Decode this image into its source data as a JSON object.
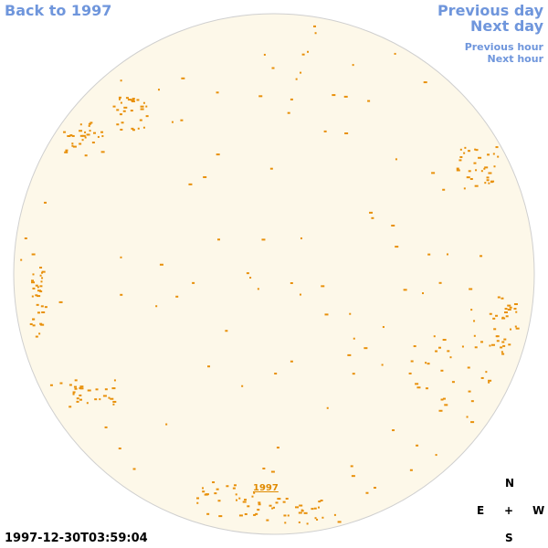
{
  "nav": {
    "back_year": "Back to 1997",
    "previous_day": "Previous day",
    "next_day": "Next day",
    "previous_hour": "Previous hour",
    "next_hour": "Next hour"
  },
  "disk": {
    "year_label": "1997"
  },
  "compass": {
    "north": "N",
    "east": "E",
    "center": "+",
    "west": "W",
    "south": "S"
  },
  "timestamp": "1997-12-30T03:59:04"
}
